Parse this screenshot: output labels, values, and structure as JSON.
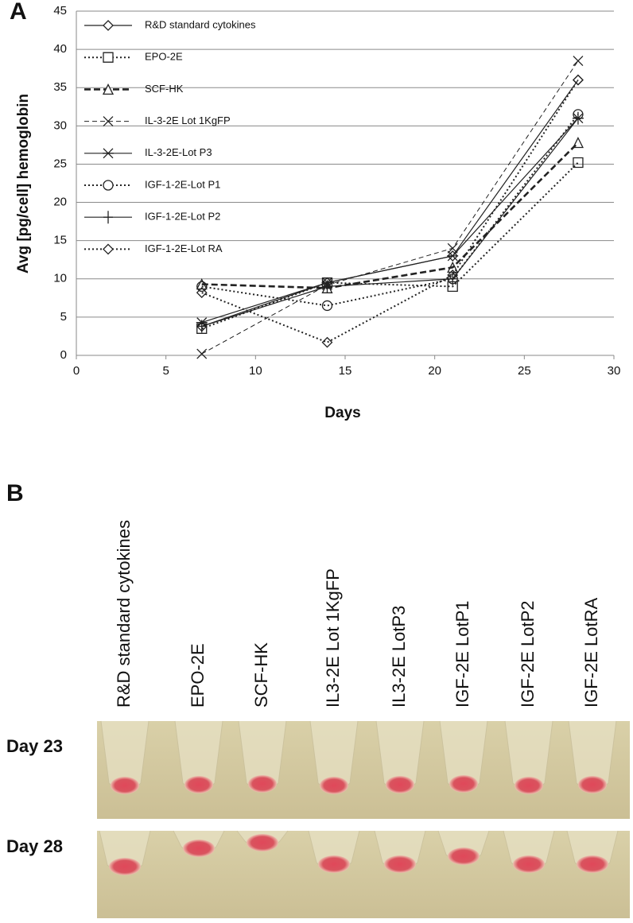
{
  "panels": {
    "a": "A",
    "b": "B"
  },
  "chart_data": {
    "type": "line",
    "x_label": "Days",
    "y_label": "Avg [pg/cell] hemoglobin",
    "x": [
      7,
      14,
      21,
      28
    ],
    "series": [
      {
        "name": "R&D standard cytokines",
        "color": "#222",
        "dash": "solid",
        "marker": "diamond",
        "values": [
          3.8,
          9.5,
          13,
          36
        ]
      },
      {
        "name": "EPO-2E",
        "color": "#222",
        "dash": "dotted",
        "marker": "square",
        "values": [
          3.5,
          9.5,
          9,
          25.2
        ]
      },
      {
        "name": "SCF-HK",
        "color": "#222",
        "dash": "dashed-bold",
        "marker": "triangle",
        "values": [
          9.3,
          8.8,
          11.5,
          27.8
        ]
      },
      {
        "name": "IL-3-2E Lot 1KgFP",
        "color": "#222",
        "dash": "dashed",
        "marker": "x",
        "values": [
          0.2,
          9.2,
          14,
          38.5
        ]
      },
      {
        "name": "IL-3-2E-Lot P3",
        "color": "#222",
        "dash": "solid",
        "marker": "star",
        "values": [
          4.3,
          9.5,
          13,
          31
        ]
      },
      {
        "name": "IGF-1-2E-Lot P1",
        "color": "#222",
        "dash": "dotted",
        "marker": "circle",
        "values": [
          9,
          6.5,
          10,
          31.5
        ]
      },
      {
        "name": "IGF-1-2E-Lot P2",
        "color": "#222",
        "dash": "solid",
        "marker": "plus",
        "values": [
          3.8,
          9,
          10,
          31
        ]
      },
      {
        "name": "IGF-1-2E-Lot RA",
        "color": "#222",
        "dash": "dotted",
        "marker": "diamond",
        "values": [
          8.2,
          1.7,
          10.5,
          36
        ]
      }
    ],
    "xlim": [
      0,
      30
    ],
    "xticks": [
      0,
      5,
      10,
      15,
      20,
      25,
      30
    ],
    "ylim": [
      0,
      45
    ],
    "yticks": [
      0,
      5,
      10,
      15,
      20,
      25,
      30,
      35,
      40,
      45
    ],
    "grid": true,
    "legend": "top-left"
  },
  "photo": {
    "tube_labels": [
      "R&D standard cytokines",
      "EPO-2E",
      "SCF-HK",
      "IL3-2E Lot 1KgFP",
      "IL3-2E LotP3",
      "IGF-2E LotP1",
      "IGF-2E LotP2",
      "IGF-2E LotRA"
    ],
    "rows": [
      "Day 23",
      "Day 28"
    ]
  }
}
